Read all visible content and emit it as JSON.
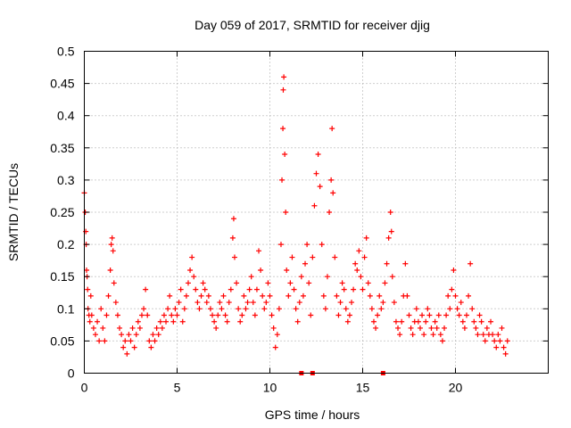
{
  "chart_data": {
    "type": "scatter",
    "title": "Day 059 of 2017, SRMTID for receiver djig",
    "xlabel": "GPS time / hours",
    "ylabel": "SRMTID / TECUs",
    "xlim": [
      0,
      25
    ],
    "ylim": [
      0,
      0.5
    ],
    "xticks": [
      0,
      5,
      10,
      15,
      20
    ],
    "xtick_labels": [
      "0",
      "5",
      "10",
      "15",
      "20"
    ],
    "yticks": [
      0,
      0.05,
      0.1,
      0.15,
      0.2,
      0.25,
      0.3,
      0.35,
      0.4,
      0.45,
      0.5
    ],
    "ytick_labels": [
      "0",
      "0.05",
      "0.1",
      "0.15",
      "0.2",
      "0.25",
      "0.3",
      "0.35",
      "0.4",
      "0.45",
      "0.5"
    ],
    "grid": true,
    "marker": "plus",
    "series_color": "#ff0000",
    "series": [
      {
        "name": "SRMTID",
        "points": [
          [
            0.0,
            0.28
          ],
          [
            0.05,
            0.25
          ],
          [
            0.08,
            0.22
          ],
          [
            0.1,
            0.2
          ],
          [
            0.12,
            0.16
          ],
          [
            0.15,
            0.15
          ],
          [
            0.18,
            0.13
          ],
          [
            0.2,
            0.1
          ],
          [
            0.25,
            0.09
          ],
          [
            0.3,
            0.08
          ],
          [
            0.35,
            0.12
          ],
          [
            0.4,
            0.09
          ],
          [
            0.5,
            0.07
          ],
          [
            0.6,
            0.06
          ],
          [
            0.7,
            0.08
          ],
          [
            0.8,
            0.05
          ],
          [
            0.9,
            0.1
          ],
          [
            1.0,
            0.07
          ],
          [
            1.1,
            0.05
          ],
          [
            1.2,
            0.09
          ],
          [
            1.3,
            0.12
          ],
          [
            1.4,
            0.16
          ],
          [
            1.45,
            0.2
          ],
          [
            1.5,
            0.21
          ],
          [
            1.55,
            0.19
          ],
          [
            1.6,
            0.14
          ],
          [
            1.7,
            0.11
          ],
          [
            1.8,
            0.09
          ],
          [
            1.9,
            0.07
          ],
          [
            2.0,
            0.06
          ],
          [
            2.1,
            0.04
          ],
          [
            2.2,
            0.05
          ],
          [
            2.3,
            0.03
          ],
          [
            2.4,
            0.06
          ],
          [
            2.5,
            0.05
          ],
          [
            2.6,
            0.07
          ],
          [
            2.7,
            0.04
          ],
          [
            2.8,
            0.06
          ],
          [
            2.9,
            0.08
          ],
          [
            3.0,
            0.07
          ],
          [
            3.1,
            0.09
          ],
          [
            3.2,
            0.1
          ],
          [
            3.3,
            0.13
          ],
          [
            3.4,
            0.09
          ],
          [
            3.5,
            0.05
          ],
          [
            3.6,
            0.04
          ],
          [
            3.7,
            0.06
          ],
          [
            3.8,
            0.05
          ],
          [
            3.9,
            0.07
          ],
          [
            4.0,
            0.06
          ],
          [
            4.1,
            0.08
          ],
          [
            4.2,
            0.07
          ],
          [
            4.3,
            0.09
          ],
          [
            4.4,
            0.08
          ],
          [
            4.5,
            0.1
          ],
          [
            4.6,
            0.12
          ],
          [
            4.7,
            0.09
          ],
          [
            4.8,
            0.08
          ],
          [
            4.9,
            0.1
          ],
          [
            5.0,
            0.09
          ],
          [
            5.1,
            0.11
          ],
          [
            5.2,
            0.13
          ],
          [
            5.3,
            0.08
          ],
          [
            5.4,
            0.1
          ],
          [
            5.5,
            0.12
          ],
          [
            5.6,
            0.14
          ],
          [
            5.7,
            0.16
          ],
          [
            5.8,
            0.18
          ],
          [
            5.9,
            0.15
          ],
          [
            6.0,
            0.13
          ],
          [
            6.1,
            0.11
          ],
          [
            6.2,
            0.1
          ],
          [
            6.3,
            0.12
          ],
          [
            6.4,
            0.14
          ],
          [
            6.5,
            0.13
          ],
          [
            6.6,
            0.11
          ],
          [
            6.7,
            0.12
          ],
          [
            6.8,
            0.1
          ],
          [
            6.9,
            0.09
          ],
          [
            7.0,
            0.08
          ],
          [
            7.1,
            0.07
          ],
          [
            7.2,
            0.09
          ],
          [
            7.3,
            0.11
          ],
          [
            7.4,
            0.1
          ],
          [
            7.5,
            0.12
          ],
          [
            7.6,
            0.09
          ],
          [
            7.7,
            0.08
          ],
          [
            7.8,
            0.11
          ],
          [
            7.9,
            0.13
          ],
          [
            8.0,
            0.21
          ],
          [
            8.05,
            0.24
          ],
          [
            8.1,
            0.18
          ],
          [
            8.2,
            0.14
          ],
          [
            8.3,
            0.1
          ],
          [
            8.4,
            0.08
          ],
          [
            8.5,
            0.09
          ],
          [
            8.6,
            0.12
          ],
          [
            8.7,
            0.1
          ],
          [
            8.8,
            0.11
          ],
          [
            8.9,
            0.13
          ],
          [
            9.0,
            0.15
          ],
          [
            9.1,
            0.11
          ],
          [
            9.2,
            0.09
          ],
          [
            9.3,
            0.13
          ],
          [
            9.4,
            0.19
          ],
          [
            9.5,
            0.16
          ],
          [
            9.6,
            0.12
          ],
          [
            9.7,
            0.1
          ],
          [
            9.8,
            0.11
          ],
          [
            9.9,
            0.14
          ],
          [
            10.0,
            0.12
          ],
          [
            10.1,
            0.09
          ],
          [
            10.2,
            0.07
          ],
          [
            10.3,
            0.04
          ],
          [
            10.4,
            0.06
          ],
          [
            10.5,
            0.1
          ],
          [
            10.6,
            0.2
          ],
          [
            10.65,
            0.3
          ],
          [
            10.7,
            0.38
          ],
          [
            10.72,
            0.44
          ],
          [
            10.75,
            0.46
          ],
          [
            10.8,
            0.34
          ],
          [
            10.85,
            0.25
          ],
          [
            10.9,
            0.16
          ],
          [
            11.0,
            0.12
          ],
          [
            11.1,
            0.14
          ],
          [
            11.2,
            0.18
          ],
          [
            11.3,
            0.13
          ],
          [
            11.4,
            0.1
          ],
          [
            11.5,
            0.08
          ],
          [
            11.6,
            0.11
          ],
          [
            11.7,
            0.15
          ],
          [
            11.8,
            0.12
          ],
          [
            11.9,
            0.17
          ],
          [
            12.0,
            0.2
          ],
          [
            12.1,
            0.14
          ],
          [
            12.2,
            0.09
          ],
          [
            12.3,
            0.18
          ],
          [
            12.4,
            0.26
          ],
          [
            12.5,
            0.31
          ],
          [
            12.6,
            0.34
          ],
          [
            12.7,
            0.29
          ],
          [
            12.8,
            0.2
          ],
          [
            12.9,
            0.12
          ],
          [
            13.0,
            0.1
          ],
          [
            13.1,
            0.15
          ],
          [
            13.2,
            0.25
          ],
          [
            13.3,
            0.3
          ],
          [
            13.35,
            0.38
          ],
          [
            13.4,
            0.28
          ],
          [
            13.5,
            0.18
          ],
          [
            13.6,
            0.12
          ],
          [
            13.7,
            0.09
          ],
          [
            13.8,
            0.11
          ],
          [
            13.9,
            0.14
          ],
          [
            14.0,
            0.13
          ],
          [
            14.1,
            0.1
          ],
          [
            14.2,
            0.08
          ],
          [
            14.3,
            0.09
          ],
          [
            14.4,
            0.11
          ],
          [
            14.5,
            0.13
          ],
          [
            14.6,
            0.17
          ],
          [
            14.7,
            0.16
          ],
          [
            14.8,
            0.19
          ],
          [
            14.9,
            0.15
          ],
          [
            15.0,
            0.13
          ],
          [
            15.1,
            0.18
          ],
          [
            15.2,
            0.21
          ],
          [
            15.3,
            0.14
          ],
          [
            15.4,
            0.12
          ],
          [
            15.5,
            0.1
          ],
          [
            15.6,
            0.08
          ],
          [
            15.7,
            0.07
          ],
          [
            15.8,
            0.09
          ],
          [
            15.9,
            0.12
          ],
          [
            16.0,
            0.1
          ],
          [
            16.1,
            0.11
          ],
          [
            16.2,
            0.14
          ],
          [
            16.3,
            0.17
          ],
          [
            16.4,
            0.21
          ],
          [
            16.5,
            0.25
          ],
          [
            16.55,
            0.22
          ],
          [
            16.6,
            0.15
          ],
          [
            16.7,
            0.11
          ],
          [
            16.8,
            0.08
          ],
          [
            16.9,
            0.07
          ],
          [
            17.0,
            0.06
          ],
          [
            17.1,
            0.08
          ],
          [
            17.2,
            0.12
          ],
          [
            17.3,
            0.17
          ],
          [
            17.4,
            0.12
          ],
          [
            17.5,
            0.09
          ],
          [
            17.6,
            0.07
          ],
          [
            17.7,
            0.06
          ],
          [
            17.8,
            0.08
          ],
          [
            17.9,
            0.1
          ],
          [
            18.0,
            0.08
          ],
          [
            18.1,
            0.07
          ],
          [
            18.2,
            0.09
          ],
          [
            18.3,
            0.06
          ],
          [
            18.4,
            0.08
          ],
          [
            18.5,
            0.1
          ],
          [
            18.6,
            0.09
          ],
          [
            18.7,
            0.07
          ],
          [
            18.8,
            0.06
          ],
          [
            18.9,
            0.08
          ],
          [
            19.0,
            0.07
          ],
          [
            19.1,
            0.09
          ],
          [
            19.2,
            0.06
          ],
          [
            19.3,
            0.05
          ],
          [
            19.4,
            0.07
          ],
          [
            19.5,
            0.09
          ],
          [
            19.6,
            0.12
          ],
          [
            19.7,
            0.1
          ],
          [
            19.8,
            0.13
          ],
          [
            19.9,
            0.16
          ],
          [
            20.0,
            0.12
          ],
          [
            20.1,
            0.1
          ],
          [
            20.2,
            0.09
          ],
          [
            20.3,
            0.11
          ],
          [
            20.4,
            0.08
          ],
          [
            20.5,
            0.07
          ],
          [
            20.6,
            0.09
          ],
          [
            20.7,
            0.12
          ],
          [
            20.8,
            0.17
          ],
          [
            20.9,
            0.1
          ],
          [
            21.0,
            0.08
          ],
          [
            21.1,
            0.07
          ],
          [
            21.2,
            0.06
          ],
          [
            21.3,
            0.09
          ],
          [
            21.4,
            0.08
          ],
          [
            21.5,
            0.06
          ],
          [
            21.6,
            0.05
          ],
          [
            21.7,
            0.07
          ],
          [
            21.8,
            0.06
          ],
          [
            21.9,
            0.08
          ],
          [
            22.0,
            0.06
          ],
          [
            22.1,
            0.05
          ],
          [
            22.2,
            0.04
          ],
          [
            22.3,
            0.06
          ],
          [
            22.4,
            0.05
          ],
          [
            22.5,
            0.07
          ],
          [
            22.6,
            0.04
          ],
          [
            22.7,
            0.03
          ],
          [
            22.8,
            0.05
          ]
        ]
      }
    ],
    "gap_markers_x": [
      11.7,
      12.3,
      16.1
    ]
  }
}
